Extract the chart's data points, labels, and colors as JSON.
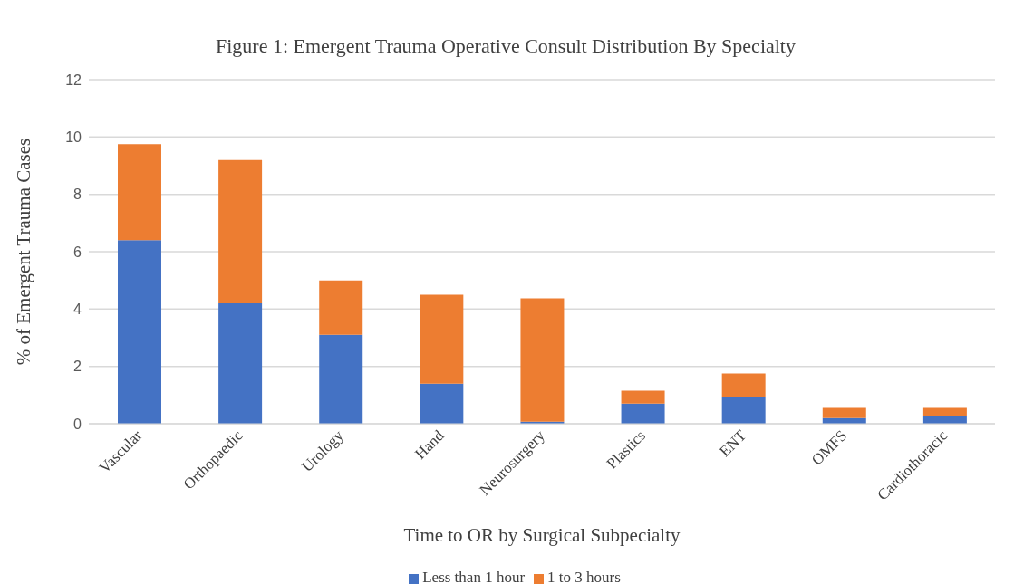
{
  "chart_data": {
    "type": "bar",
    "title": "Figure 1: Emergent Trauma Operative Consult Distribution By Specialty",
    "xlabel": "Time to OR by Surgical Subpecialty",
    "ylabel": "% of Emergent Trauma Cases",
    "categories": [
      "Vascular",
      "Orthopaedic",
      "Urology",
      "Hand",
      "Neurosurgery",
      "Plastics",
      "ENT",
      "OMFS",
      "Cardiothoracic"
    ],
    "series": [
      {
        "name": "Less than 1 hour",
        "color": "#4472c4",
        "values": [
          6.4,
          4.2,
          3.1,
          1.4,
          0.07,
          0.7,
          0.95,
          0.2,
          0.28
        ]
      },
      {
        "name": "1 to 3 hours",
        "color": "#ed7d31",
        "values": [
          3.35,
          5.0,
          1.9,
          3.1,
          4.3,
          0.45,
          0.8,
          0.35,
          0.27
        ]
      }
    ],
    "stacked": true,
    "ylim": [
      0,
      12
    ],
    "yticks": [
      0,
      2,
      4,
      6,
      8,
      10,
      12
    ],
    "grid": "y",
    "legend": "bottom"
  }
}
